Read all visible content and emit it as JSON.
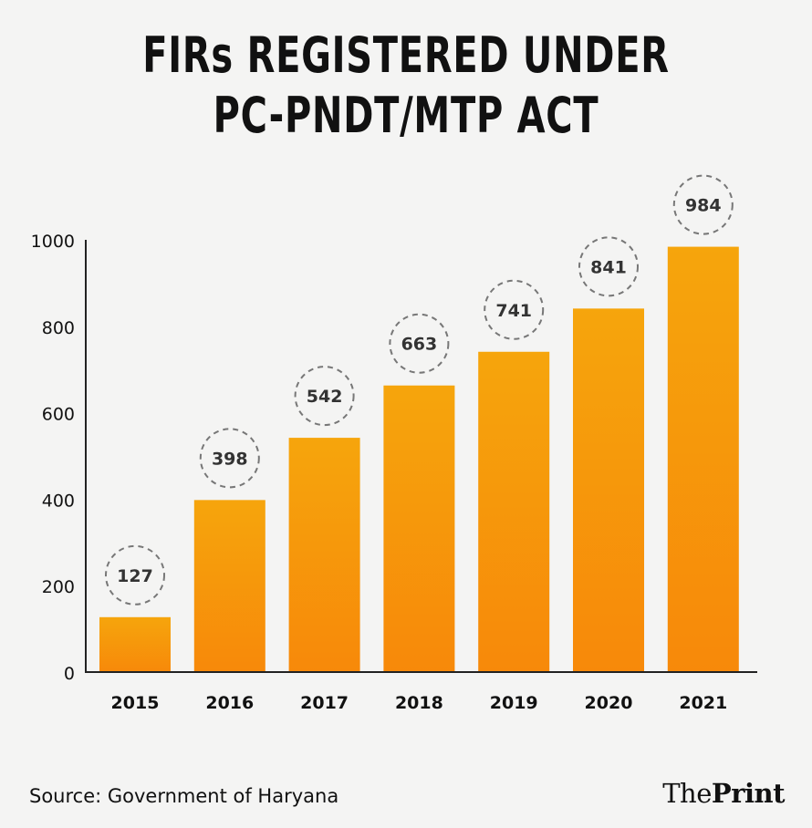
{
  "chart_data": {
    "type": "bar",
    "title_lines": [
      "FIRs REGISTERED UNDER",
      "PC-PNDT/MTP ACT"
    ],
    "categories": [
      "2015",
      "2016",
      "2017",
      "2018",
      "2019",
      "2020",
      "2021"
    ],
    "values": [
      127,
      398,
      542,
      663,
      741,
      841,
      984
    ],
    "yticks": [
      0,
      200,
      400,
      600,
      800,
      1000
    ],
    "ylim": [
      0,
      1000
    ],
    "xlabel": "",
    "ylabel": "",
    "grid": false,
    "legend": "none",
    "bar_color_top": "#f6a50c",
    "bar_color_bottom": "#f7890a"
  },
  "footer": {
    "source": "Source: Government of Haryana",
    "logo_part1": "The",
    "logo_part2": "Print"
  }
}
